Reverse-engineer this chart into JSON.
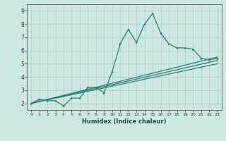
{
  "xlabel": "Humidex (Indice chaleur)",
  "background_color": "#cce8e4",
  "grid_color": "#b0d0cc",
  "line_color": "#2e7d6e",
  "xlim": [
    -0.5,
    23.5
  ],
  "ylim": [
    1.5,
    9.5
  ],
  "xticks": [
    0,
    1,
    2,
    3,
    4,
    5,
    6,
    7,
    8,
    9,
    10,
    11,
    12,
    13,
    14,
    15,
    16,
    17,
    18,
    19,
    20,
    21,
    22,
    23
  ],
  "yticks": [
    2,
    3,
    4,
    5,
    6,
    7,
    8,
    9
  ],
  "main_x": [
    0,
    1,
    2,
    3,
    4,
    5,
    6,
    7,
    8,
    9,
    10,
    11,
    12,
    13,
    14,
    15,
    16,
    17,
    18,
    19,
    20,
    21,
    22,
    23
  ],
  "main_y": [
    2.0,
    2.3,
    2.2,
    2.2,
    1.8,
    2.4,
    2.4,
    3.2,
    3.2,
    2.8,
    4.4,
    6.5,
    7.6,
    6.6,
    8.0,
    8.8,
    7.3,
    6.5,
    6.2,
    6.2,
    6.1,
    5.4,
    5.3,
    5.4
  ],
  "line1_x": [
    0,
    23
  ],
  "line1_y": [
    2.0,
    5.5
  ],
  "line2_x": [
    0,
    23
  ],
  "line2_y": [
    2.0,
    5.25
  ],
  "line3_x": [
    0,
    23
  ],
  "line3_y": [
    2.0,
    5.0
  ]
}
